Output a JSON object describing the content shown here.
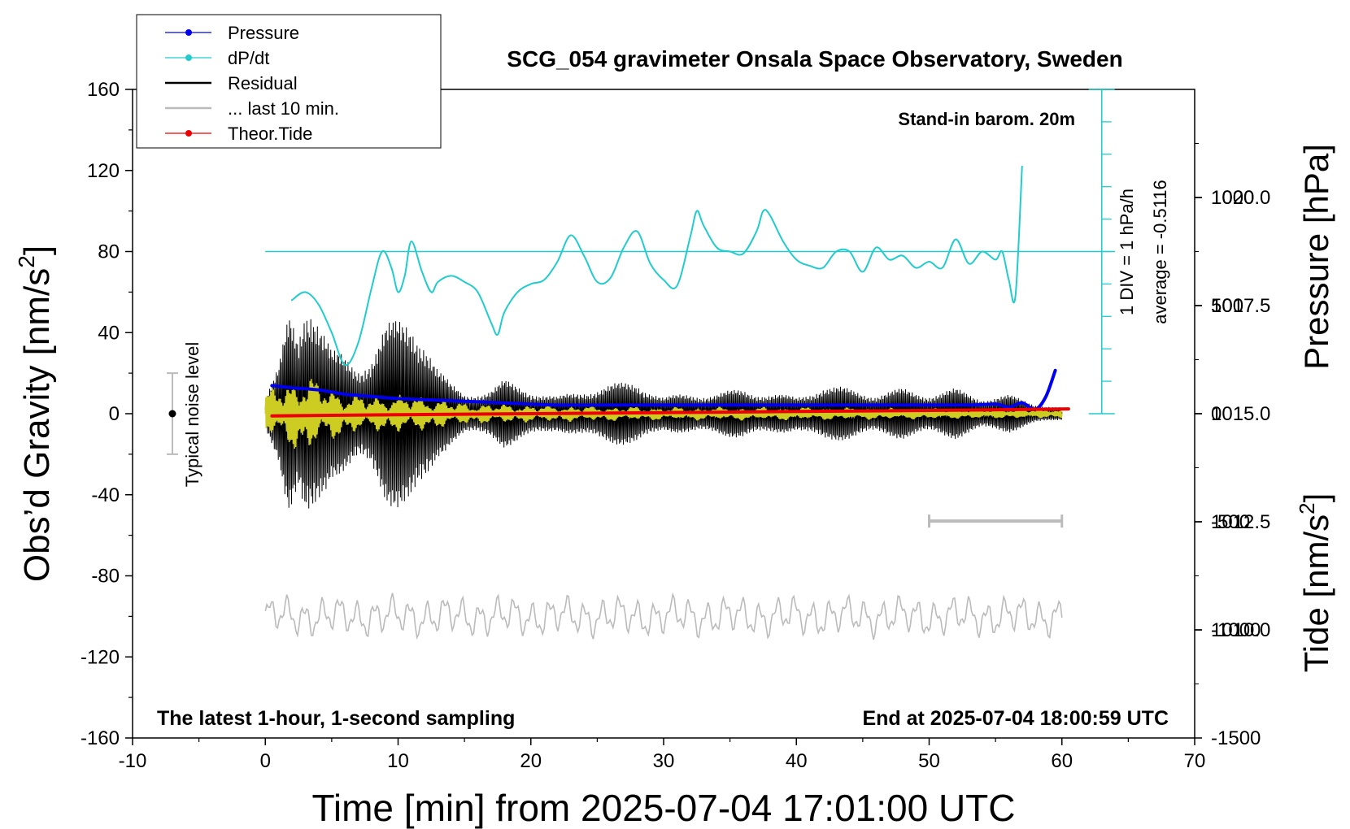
{
  "chart_data": {
    "type": "line",
    "title": "SCG_054 gravimeter Onsala Space Observatory, Sweden",
    "xlabel": "Time [min] from 2025-07-04 17:01:00 UTC",
    "ylabel_left": "Obs'd Gravity [nm/s²]",
    "ylabel_left_main": "Obs’d Gravity [nm/s",
    "ylabel_left_sup": "2",
    "ylabel_left_tail": "]",
    "ylabel_right_top": "Pressure [hPa]",
    "ylabel_right_bottom_main": "Tide [nm/s",
    "ylabel_right_bottom_sup": "2",
    "ylabel_right_bottom_tail": "]",
    "xlim": [
      -10,
      70
    ],
    "ylim": [
      -160,
      160
    ],
    "pressure_ylim": [
      1007.5,
      1022.5
    ],
    "tide_ylim": [
      -1500,
      1500
    ],
    "x_ticks": [
      "-10",
      "0",
      "10",
      "20",
      "30",
      "40",
      "50",
      "60",
      "70"
    ],
    "y_ticks": [
      "160",
      "120",
      "80",
      "40",
      "0",
      "-40",
      "-80",
      "-120",
      "-160"
    ],
    "pressure_ticks": [
      "1020.0",
      "1017.5",
      "1015.0",
      "1012.5",
      "1010.0"
    ],
    "tide_ticks": [
      "1000",
      "500",
      "0",
      "-500",
      "-1000",
      "-1500"
    ],
    "legend": [
      {
        "label": "Pressure",
        "color": "#0000ee",
        "marker": true
      },
      {
        "label": "dP/dt",
        "color": "#22cccc",
        "marker": true
      },
      {
        "label": "Residual",
        "color": "#000000",
        "marker": false
      },
      {
        "label": "... last 10 min.",
        "color": "#bbbbbb",
        "marker": false
      },
      {
        "label": "Theor.Tide",
        "color": "#ee0000",
        "marker": true
      }
    ],
    "annotations": {
      "barometer": "Stand-in barom. 20m",
      "div": "1 DIV = 1 hPa/h",
      "average": "average = -0.5116",
      "noise": "Typical noise level",
      "latest": "The latest 1-hour, 1-second sampling",
      "end": "End at 2025-07-04 18:00:59 UTC"
    },
    "noise_bar": {
      "x": -7,
      "center": 0,
      "half_range": 20
    },
    "dpdt_zero_gravity_level": 80,
    "dpdt_scale_bar": {
      "x": 63,
      "top": 160,
      "bottom": 0
    },
    "grey_scale_bar": {
      "x": [
        50,
        60
      ],
      "y": -53
    },
    "series": [
      {
        "name": "Pressure",
        "color": "#0000ee",
        "unit": "hPa",
        "x": [
          0.5,
          2,
          4,
          6,
          8,
          10,
          14,
          18,
          22,
          26,
          30,
          34,
          38,
          42,
          46,
          50,
          53,
          55,
          56,
          57,
          58,
          58.8,
          59.5
        ],
        "y": [
          1015.65,
          1015.6,
          1015.55,
          1015.45,
          1015.4,
          1015.35,
          1015.3,
          1015.25,
          1015.2,
          1015.2,
          1015.2,
          1015.2,
          1015.2,
          1015.2,
          1015.2,
          1015.2,
          1015.2,
          1015.22,
          1015.15,
          1015.25,
          1015.1,
          1015.4,
          1016.0
        ]
      },
      {
        "name": "dP/dt",
        "color": "#22cccc",
        "unit": "gravity-axis level (80 = 0 hPa/h, 16 per hPa/h)",
        "x": [
          2,
          3,
          4,
          5,
          6,
          7,
          8,
          8.8,
          9.5,
          10,
          10.5,
          11,
          11.8,
          12.5,
          13,
          14,
          15,
          16,
          17,
          17.5,
          18,
          19,
          20,
          21,
          22,
          23,
          24,
          25,
          26,
          27,
          28,
          29,
          30,
          31,
          32,
          32.5,
          33,
          34,
          35,
          36,
          37,
          37.5,
          38,
          39,
          40,
          41,
          42,
          43,
          44,
          45,
          46,
          47,
          48,
          49,
          50,
          51,
          52,
          53,
          54,
          55,
          55.5,
          56,
          56.5,
          57
        ],
        "y": [
          56,
          60,
          54,
          40,
          24,
          35,
          62,
          80,
          72,
          60,
          68,
          85,
          70,
          60,
          65,
          68,
          65,
          60,
          45,
          39,
          50,
          60,
          64,
          66,
          75,
          88,
          78,
          65,
          67,
          82,
          90,
          74,
          66,
          63,
          87,
          100,
          93,
          82,
          80,
          79,
          90,
          100,
          98,
          85,
          76,
          73,
          72,
          80,
          80,
          70,
          82,
          76,
          78,
          72,
          75,
          72,
          86,
          74,
          80,
          76,
          80,
          66,
          58,
          122
        ]
      },
      {
        "name": "Theor.Tide",
        "color": "#ee0000",
        "unit": "nm/s²",
        "x": [
          0.5,
          10,
          20,
          30,
          40,
          50,
          60.5
        ],
        "y": [
          -10,
          -5,
          0,
          5,
          10,
          15,
          22
        ]
      }
    ],
    "residual_envelope": {
      "name": "Residual",
      "color": "#000000",
      "unit": "nm/s²",
      "x": [
        0,
        1,
        1.8,
        2.5,
        3,
        3.5,
        4.2,
        5,
        6,
        7,
        8,
        9,
        10,
        11,
        12,
        13,
        14,
        15,
        17,
        18,
        20,
        22,
        24,
        26,
        28,
        30,
        32,
        34,
        36,
        38,
        40,
        42,
        44,
        46,
        48,
        50,
        52,
        54,
        56,
        58,
        60
      ],
      "amp": [
        8,
        22,
        50,
        42,
        62,
        60,
        45,
        30,
        28,
        25,
        30,
        42,
        45,
        48,
        40,
        22,
        14,
        10,
        12,
        16,
        12,
        8,
        12,
        14,
        16,
        8,
        10,
        10,
        12,
        10,
        8,
        14,
        12,
        10,
        12,
        10,
        12,
        8,
        9,
        5,
        3
      ]
    },
    "highpass_envelope": {
      "name": "High-pass",
      "color": "#cccc22",
      "unit": "nm/s²",
      "x": [
        0,
        2,
        3,
        4,
        6,
        8,
        10,
        12,
        15,
        20,
        25,
        30,
        40,
        50,
        60
      ],
      "amp": [
        10,
        16,
        20,
        15,
        10,
        8,
        9,
        8,
        5,
        4,
        3.5,
        3,
        3,
        2.5,
        2
      ]
    },
    "last10_trace": {
      "name": "... last 10 min.",
      "color": "#bbbbbb",
      "unit": "nm/s²",
      "x_start": 0,
      "x_end": 60,
      "center": -100,
      "amp": 7
    }
  }
}
